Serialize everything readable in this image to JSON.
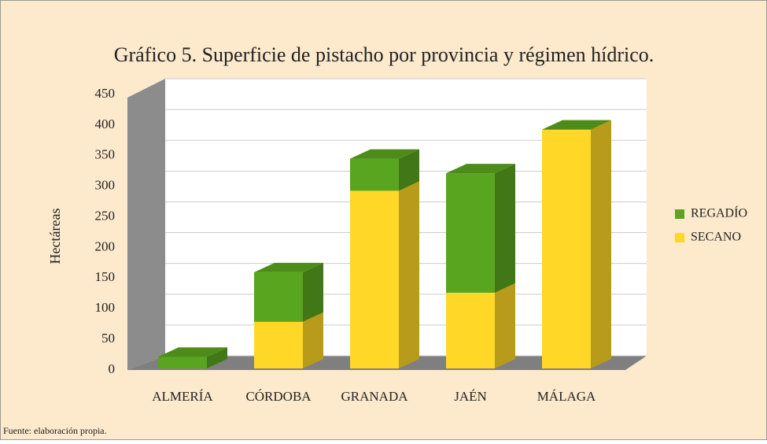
{
  "chart_data": {
    "type": "bar3d_stacked",
    "title": "Gráfico 5. Superficie de pistacho por provincia y régimen hídrico.",
    "ylabel": "Hectáreas",
    "footer": "Fuente: elaboración propia.",
    "categories": [
      "ALMERÍA",
      "CÓRDOBA",
      "GRANADA",
      "JAÉN",
      "MÁLAGA"
    ],
    "series": [
      {
        "name": "SECANO",
        "color": "#ffd726",
        "values": [
          0,
          80,
          305,
          130,
          410
        ]
      },
      {
        "name": "REGADÍO",
        "color": "#5aa51f",
        "values": [
          20,
          85,
          55,
          205,
          0
        ]
      }
    ],
    "ylim": [
      0,
      450
    ],
    "yticks": [
      0,
      50,
      100,
      150,
      200,
      250,
      300,
      350,
      400,
      450
    ],
    "grid": true,
    "legend": "right"
  }
}
